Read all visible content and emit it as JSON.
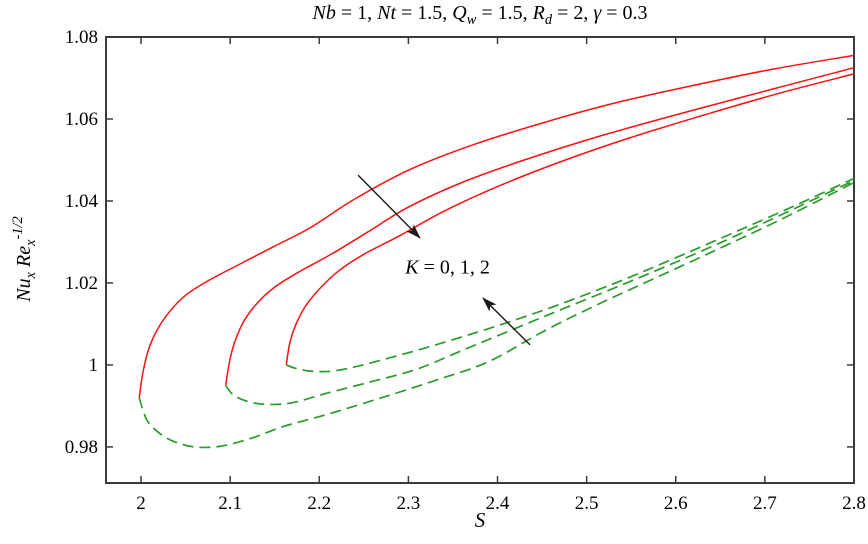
{
  "figure": {
    "background": "#ffffff",
    "frame_color": "#3a3a3a",
    "text_color": "#000000",
    "red_color": "#fb1111",
    "green_color": "#2b9b2b",
    "arrow_color": "#1a1a1a"
  },
  "chart_data": {
    "type": "line",
    "title_plain": "Nb = 1, Nt = 1.5, Qw = 1.5, Rd = 2, γ = 0.3",
    "title_segments": [
      {
        "t": "Nb",
        "i": 1
      },
      {
        "t": " = 1, "
      },
      {
        "t": "Nt",
        "i": 1
      },
      {
        "t": " = 1.5, "
      },
      {
        "t": "Q",
        "i": 1
      },
      {
        "t": "w",
        "i": 1,
        "sub": 1
      },
      {
        "t": " = 1.5, "
      },
      {
        "t": "R",
        "i": 1
      },
      {
        "t": "d",
        "i": 1,
        "sub": 1
      },
      {
        "t": " = 2, "
      },
      {
        "t": "γ",
        "i": 1
      },
      {
        "t": " = 0.3"
      }
    ],
    "xlabel": "S",
    "ylabel_plain": "Nux Rex^-1/2",
    "ylabel_segments": [
      {
        "t": "Nu",
        "i": 1
      },
      {
        "t": "x",
        "i": 1,
        "sub": 1
      },
      {
        "t": " "
      },
      {
        "t": "Re",
        "i": 1
      },
      {
        "t": "x",
        "i": 1,
        "sub": 1
      },
      {
        "t": "-1/2",
        "i": 1,
        "sup": 1
      }
    ],
    "xlim": [
      1.9607,
      2.8
    ],
    "ylim": [
      0.9712,
      1.08
    ],
    "xticks": [
      2,
      2.1,
      2.2,
      2.3,
      2.4,
      2.5,
      2.6,
      2.7,
      2.8
    ],
    "xtick_labels": [
      "2",
      "2.1",
      "2.2",
      "2.3",
      "2.4",
      "2.5",
      "2.6",
      "2.7",
      "2.8"
    ],
    "yticks": [
      0.98,
      1,
      1.02,
      1.04,
      1.06,
      1.08
    ],
    "ytick_labels": [
      "0.98",
      "1",
      "1.02",
      "1.04",
      "1.06",
      "1.08"
    ],
    "grid": false,
    "legend_position": "none",
    "annotation": {
      "text_plain": "K = 0, 1, 2",
      "segments": [
        {
          "t": "K",
          "i": 1
        },
        {
          "t": " = 0, 1, 2"
        }
      ],
      "center_data": [
        2.344,
        1.0237
      ]
    },
    "arrows": [
      {
        "name": "arrow-through-upper-branches",
        "from_data": [
          2.2435,
          1.0463
        ],
        "to_data": [
          2.313,
          1.031
        ]
      },
      {
        "name": "arrow-through-lower-branches",
        "from_data": [
          2.4365,
          1.0049
        ],
        "to_data": [
          2.3837,
          1.0163
        ]
      }
    ],
    "series": [
      {
        "name": "K=0 upper branch",
        "k": 0,
        "branch": "upper",
        "style": "solid",
        "color": "#fb1111",
        "points": [
          [
            1.998,
            0.992
          ],
          [
            2.002,
            0.998
          ],
          [
            2.008,
            1.0035
          ],
          [
            2.018,
            1.0085
          ],
          [
            2.032,
            1.013
          ],
          [
            2.05,
            1.017
          ],
          [
            2.075,
            1.0205
          ],
          [
            2.11,
            1.0245
          ],
          [
            2.15,
            1.029
          ],
          [
            2.19,
            1.0335
          ],
          [
            2.24,
            1.0405
          ],
          [
            2.3,
            1.0475
          ],
          [
            2.37,
            1.0535
          ],
          [
            2.45,
            1.059
          ],
          [
            2.53,
            1.0638
          ],
          [
            2.62,
            1.0682
          ],
          [
            2.71,
            1.0722
          ],
          [
            2.8,
            1.0755
          ]
        ]
      },
      {
        "name": "K=1 upper branch",
        "k": 1,
        "branch": "upper",
        "style": "solid",
        "color": "#fb1111",
        "points": [
          [
            2.095,
            0.995
          ],
          [
            2.099,
            1.0005
          ],
          [
            2.105,
            1.0055
          ],
          [
            2.115,
            1.0105
          ],
          [
            2.13,
            1.015
          ],
          [
            2.15,
            1.019
          ],
          [
            2.178,
            1.0228
          ],
          [
            2.215,
            1.0272
          ],
          [
            2.255,
            1.0325
          ],
          [
            2.3,
            1.0385
          ],
          [
            2.36,
            1.0445
          ],
          [
            2.43,
            1.05
          ],
          [
            2.51,
            1.0555
          ],
          [
            2.6,
            1.061
          ],
          [
            2.7,
            1.0668
          ],
          [
            2.8,
            1.0725
          ]
        ]
      },
      {
        "name": "K=2 upper branch",
        "k": 2,
        "branch": "upper",
        "style": "solid",
        "color": "#fb1111",
        "points": [
          [
            2.163,
            1.0
          ],
          [
            2.167,
            1.0055
          ],
          [
            2.174,
            1.01
          ],
          [
            2.185,
            1.0145
          ],
          [
            2.2,
            1.0185
          ],
          [
            2.222,
            1.023
          ],
          [
            2.25,
            1.027
          ],
          [
            2.29,
            1.0315
          ],
          [
            2.34,
            1.0375
          ],
          [
            2.4,
            1.0435
          ],
          [
            2.47,
            1.0495
          ],
          [
            2.55,
            1.0555
          ],
          [
            2.64,
            1.0615
          ],
          [
            2.72,
            1.0665
          ],
          [
            2.8,
            1.071
          ]
        ]
      },
      {
        "name": "K=0 lower branch",
        "k": 0,
        "branch": "lower",
        "style": "dashed",
        "color": "#2b9b2b",
        "points": [
          [
            1.998,
            0.992
          ],
          [
            2.006,
            0.9868
          ],
          [
            2.018,
            0.9838
          ],
          [
            2.035,
            0.9815
          ],
          [
            2.06,
            0.98
          ],
          [
            2.09,
            0.9802
          ],
          [
            2.125,
            0.9822
          ],
          [
            2.16,
            0.985
          ],
          [
            2.21,
            0.988
          ],
          [
            2.27,
            0.992
          ],
          [
            2.33,
            0.9962
          ],
          [
            2.39,
            1.0008
          ],
          [
            2.45,
            1.008
          ],
          [
            2.51,
            1.0145
          ],
          [
            2.57,
            1.0205
          ],
          [
            2.64,
            1.0275
          ],
          [
            2.72,
            1.0357
          ],
          [
            2.8,
            1.0445
          ]
        ]
      },
      {
        "name": "K=1 lower branch",
        "k": 1,
        "branch": "lower",
        "style": "dashed",
        "color": "#2b9b2b",
        "points": [
          [
            2.095,
            0.995
          ],
          [
            2.103,
            0.9928
          ],
          [
            2.118,
            0.9912
          ],
          [
            2.14,
            0.9904
          ],
          [
            2.17,
            0.9908
          ],
          [
            2.21,
            0.9932
          ],
          [
            2.26,
            0.996
          ],
          [
            2.31,
            0.999
          ],
          [
            2.36,
            1.0035
          ],
          [
            2.41,
            1.008
          ],
          [
            2.46,
            1.0125
          ],
          [
            2.52,
            1.0178
          ],
          [
            2.58,
            1.0232
          ],
          [
            2.65,
            1.0298
          ],
          [
            2.72,
            1.0368
          ],
          [
            2.8,
            1.045
          ]
        ]
      },
      {
        "name": "K=2 lower branch",
        "k": 2,
        "branch": "lower",
        "style": "dashed",
        "color": "#2b9b2b",
        "points": [
          [
            2.163,
            1.0
          ],
          [
            2.173,
            0.9992
          ],
          [
            2.19,
            0.9985
          ],
          [
            2.215,
            0.9985
          ],
          [
            2.245,
            0.9998
          ],
          [
            2.28,
            1.0018
          ],
          [
            2.32,
            1.0042
          ],
          [
            2.37,
            1.0075
          ],
          [
            2.42,
            1.011
          ],
          [
            2.47,
            1.0148
          ],
          [
            2.53,
            1.0198
          ],
          [
            2.59,
            1.0252
          ],
          [
            2.66,
            1.0318
          ],
          [
            2.73,
            1.0385
          ],
          [
            2.8,
            1.0455
          ]
        ]
      }
    ]
  }
}
